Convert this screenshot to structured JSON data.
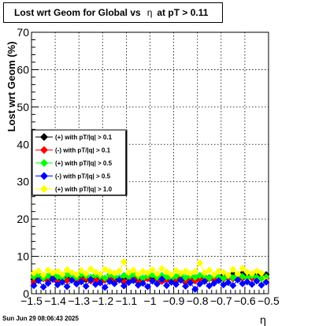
{
  "title": {
    "prefix": "Lost wrt Geom for Global vs",
    "symbol": "η",
    "suffix": "at pT > 0.11"
  },
  "date_stamp": "Sun Jun 29 08:06:43 2025",
  "chart_data": {
    "type": "scatter",
    "xlabel": "η",
    "ylabel": "Lost wrt Geom (%)",
    "xlim": [
      -1.5,
      -0.5
    ],
    "ylim": [
      0,
      70
    ],
    "x_ticks": [
      -1.5,
      -1.4,
      -1.3,
      -1.2,
      -1.1,
      -1.0,
      -0.9,
      -0.8,
      -0.7,
      -0.6,
      -0.5
    ],
    "x_tick_labels": [
      "−1.5",
      "−1.4",
      "−1.3",
      "−1.2",
      "−1.1",
      "−1",
      "−0.9",
      "−0.8",
      "−0.7",
      "−0.6",
      "−0.5"
    ],
    "y_ticks": [
      0,
      10,
      20,
      30,
      40,
      50,
      60,
      70
    ],
    "y_tick_labels": [
      "0",
      "10",
      "20",
      "30",
      "40",
      "50",
      "60",
      "70"
    ],
    "grid": true,
    "legend_position": "middle-left",
    "series": [
      {
        "name": "(+) with pT/|q| > 0.1",
        "color": "#000000",
        "x": [
          -1.49,
          -1.47,
          -1.45,
          -1.43,
          -1.41,
          -1.39,
          -1.37,
          -1.35,
          -1.33,
          -1.31,
          -1.29,
          -1.27,
          -1.25,
          -1.23,
          -1.21,
          -1.19,
          -1.17,
          -1.15,
          -1.13,
          -1.11,
          -1.09,
          -1.07,
          -1.05,
          -1.03,
          -1.01,
          -0.99,
          -0.97,
          -0.95,
          -0.93,
          -0.91,
          -0.89,
          -0.87,
          -0.85,
          -0.83,
          -0.81,
          -0.79,
          -0.77,
          -0.75,
          -0.73,
          -0.71,
          -0.69,
          -0.67,
          -0.65,
          -0.63,
          -0.61,
          -0.59,
          -0.57,
          -0.55,
          -0.53,
          -0.51
        ],
        "y": [
          3.8,
          4.2,
          4.0,
          3.6,
          4.4,
          4.1,
          3.9,
          4.3,
          3.7,
          4.0,
          4.2,
          3.8,
          4.1,
          3.9,
          4.3,
          4.0,
          3.6,
          4.2,
          3.8,
          4.4,
          3.9,
          4.1,
          3.7,
          4.0,
          4.3,
          3.8,
          4.2,
          3.9,
          4.1,
          3.7,
          4.0,
          4.4,
          3.8,
          4.2,
          4.5,
          4.1,
          4.6,
          4.3,
          4.8,
          4.4,
          5.0,
          4.7,
          5.2,
          4.9,
          5.4,
          5.1,
          5.0,
          5.3,
          4.9,
          5.1
        ]
      },
      {
        "name": "(-) with pT/|q| > 0.1",
        "color": "#ff0000",
        "x": [
          -1.49,
          -1.47,
          -1.45,
          -1.43,
          -1.41,
          -1.39,
          -1.37,
          -1.35,
          -1.33,
          -1.31,
          -1.29,
          -1.27,
          -1.25,
          -1.23,
          -1.21,
          -1.19,
          -1.17,
          -1.15,
          -1.13,
          -1.11,
          -1.09,
          -1.07,
          -1.05,
          -1.03,
          -1.01,
          -0.99,
          -0.97,
          -0.95,
          -0.93,
          -0.91,
          -0.89,
          -0.87,
          -0.85,
          -0.83,
          -0.81,
          -0.79,
          -0.77,
          -0.75,
          -0.73,
          -0.71,
          -0.69,
          -0.67,
          -0.65,
          -0.63,
          -0.61,
          -0.59,
          -0.57,
          -0.55,
          -0.53,
          -0.51
        ],
        "y": [
          3.2,
          3.6,
          4.0,
          3.4,
          3.8,
          3.1,
          4.2,
          3.5,
          3.9,
          3.3,
          3.7,
          4.1,
          3.4,
          3.8,
          3.2,
          3.6,
          4.0,
          3.3,
          3.7,
          3.1,
          3.5,
          3.9,
          3.2,
          3.6,
          4.0,
          3.4,
          3.8,
          3.3,
          3.7,
          3.1,
          3.5,
          3.9,
          3.2,
          3.6,
          3.4,
          3.8,
          3.5,
          4.0,
          3.7,
          4.1,
          3.9,
          4.2,
          4.0,
          4.3,
          4.1,
          4.4,
          4.2,
          4.0,
          4.3,
          4.1
        ]
      },
      {
        "name": "(+) with pT/|q| > 0.5",
        "color": "#00ff00",
        "x": [
          -1.49,
          -1.47,
          -1.45,
          -1.43,
          -1.41,
          -1.39,
          -1.37,
          -1.35,
          -1.33,
          -1.31,
          -1.29,
          -1.27,
          -1.25,
          -1.23,
          -1.21,
          -1.19,
          -1.17,
          -1.15,
          -1.13,
          -1.11,
          -1.09,
          -1.07,
          -1.05,
          -1.03,
          -1.01,
          -0.99,
          -0.97,
          -0.95,
          -0.93,
          -0.91,
          -0.89,
          -0.87,
          -0.85,
          -0.83,
          -0.81,
          -0.79,
          -0.77,
          -0.75,
          -0.73,
          -0.71,
          -0.69,
          -0.67,
          -0.65,
          -0.63,
          -0.61,
          -0.59,
          -0.57,
          -0.55,
          -0.53,
          -0.51
        ],
        "y": [
          4.5,
          5.0,
          4.2,
          4.8,
          5.3,
          4.6,
          4.1,
          5.1,
          4.7,
          4.3,
          5.2,
          4.8,
          4.4,
          5.0,
          4.6,
          4.2,
          5.1,
          4.7,
          4.3,
          4.9,
          4.5,
          5.2,
          4.6,
          4.2,
          4.8,
          5.0,
          4.4,
          4.9,
          4.5,
          4.1,
          4.7,
          5.1,
          4.3,
          4.8,
          4.4,
          4.9,
          4.6,
          4.2,
          4.8,
          4.5,
          4.1,
          4.7,
          4.3,
          4.9,
          4.6,
          4.2,
          4.8,
          4.4,
          4.0,
          4.5
        ]
      },
      {
        "name": "(-) with pT/|q| > 0.5",
        "color": "#0000ff",
        "x": [
          -1.49,
          -1.47,
          -1.45,
          -1.43,
          -1.41,
          -1.39,
          -1.37,
          -1.35,
          -1.33,
          -1.31,
          -1.29,
          -1.27,
          -1.25,
          -1.23,
          -1.21,
          -1.19,
          -1.17,
          -1.15,
          -1.13,
          -1.11,
          -1.09,
          -1.07,
          -1.05,
          -1.03,
          -1.01,
          -0.99,
          -0.97,
          -0.95,
          -0.93,
          -0.91,
          -0.89,
          -0.87,
          -0.85,
          -0.83,
          -0.81,
          -0.79,
          -0.77,
          -0.75,
          -0.73,
          -0.71,
          -0.69,
          -0.67,
          -0.65,
          -0.63,
          -0.61,
          -0.59,
          -0.57,
          -0.55,
          -0.53,
          -0.51
        ],
        "y": [
          2.2,
          3.5,
          1.8,
          2.8,
          3.9,
          2.4,
          3.1,
          1.9,
          3.6,
          2.6,
          3.2,
          2.0,
          3.8,
          2.5,
          2.9,
          1.7,
          3.3,
          2.7,
          3.7,
          2.1,
          3.0,
          3.5,
          2.3,
          2.8,
          1.9,
          3.4,
          2.6,
          3.9,
          2.2,
          3.1,
          2.5,
          3.6,
          2.0,
          2.9,
          1.2,
          2.6,
          3.3,
          2.1,
          2.8,
          3.5,
          2.4,
          3.0,
          2.2,
          3.7,
          2.7,
          3.2,
          2.5,
          3.4,
          2.3,
          3.1
        ]
      },
      {
        "name": "(+) with pT/|q| > 1.0",
        "color": "#ffff00",
        "x": [
          -1.49,
          -1.47,
          -1.45,
          -1.43,
          -1.41,
          -1.39,
          -1.37,
          -1.35,
          -1.33,
          -1.31,
          -1.29,
          -1.27,
          -1.25,
          -1.23,
          -1.21,
          -1.19,
          -1.17,
          -1.15,
          -1.13,
          -1.11,
          -1.09,
          -1.07,
          -1.05,
          -1.03,
          -1.01,
          -0.99,
          -0.97,
          -0.95,
          -0.93,
          -0.91,
          -0.89,
          -0.87,
          -0.85,
          -0.83,
          -0.81,
          -0.79,
          -0.77,
          -0.75,
          -0.73,
          -0.71,
          -0.69,
          -0.67,
          -0.65,
          -0.63,
          -0.61,
          -0.59,
          -0.57,
          -0.55,
          -0.53,
          -0.51
        ],
        "y": [
          5.5,
          6.1,
          5.0,
          6.3,
          5.6,
          6.0,
          5.2,
          6.4,
          5.7,
          5.1,
          6.2,
          5.4,
          6.6,
          5.8,
          5.3,
          6.5,
          5.9,
          5.5,
          6.1,
          8.6,
          5.7,
          6.3,
          5.2,
          6.0,
          5.6,
          6.4,
          5.3,
          6.7,
          5.8,
          5.1,
          6.2,
          5.5,
          6.0,
          5.4,
          5.9,
          8.2,
          5.6,
          6.3,
          5.2,
          6.1,
          5.7,
          5.0,
          6.5,
          5.3,
          6.8,
          5.8,
          5.4,
          6.1,
          5.5,
          3.4
        ]
      }
    ]
  }
}
